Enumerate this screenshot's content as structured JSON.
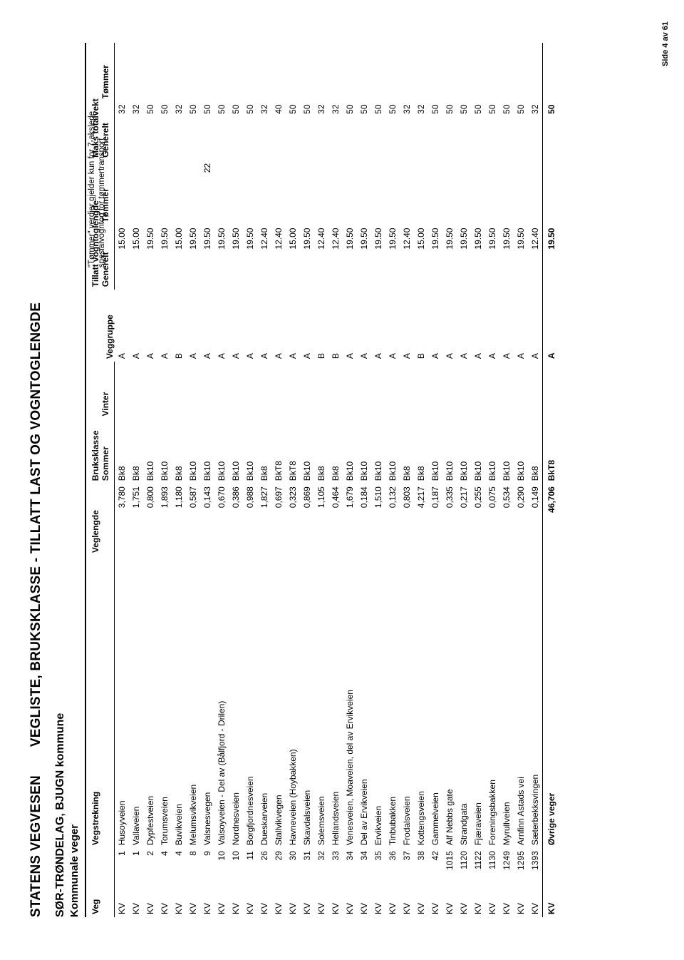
{
  "title_left": "STATENS VEGVESEN",
  "title_right": "VEGLISTE,  BRUKSKLASSE - TILLATT LAST OG VOGNTOGLENGDE",
  "subtitle": "SØR-TRØNDELAG, BJUGN kommune",
  "subtitle2": "Kommunale veger",
  "note_line1": "\"Tømmer\" verdier gjelder kun for 7-akslede",
  "note_line2": "spesialvogntog for tømmertransport",
  "footer": "Side 4 av 61",
  "headers": {
    "veg": "Veg",
    "vegstrekning": "Vegstrekning",
    "veglengde": "Veglengde",
    "bruksklasse": "Bruksklasse",
    "sommer": "Sommer",
    "vinter": "Vinter",
    "veggruppe": "Veggruppe",
    "tillatt": "Tillatt vogntoglengde",
    "maks": "Maks totalvekt",
    "generelt": "Generelt",
    "tommer": "Tømmer"
  },
  "rows": [
    {
      "t": "KV",
      "nr": "1",
      "name": "Husoyveien",
      "len": "3,780",
      "sommer": "Bk8",
      "vinter": "",
      "grp": "A",
      "vg": "15.00",
      "vt": "",
      "mg": "32",
      "mt": ""
    },
    {
      "t": "KV",
      "nr": "1",
      "name": "Vallaveien",
      "len": "1,751",
      "sommer": "Bk8",
      "vinter": "",
      "grp": "A",
      "vg": "15.00",
      "vt": "",
      "mg": "32",
      "mt": ""
    },
    {
      "t": "KV",
      "nr": "2",
      "name": "Dypfestveien",
      "len": "0,800",
      "sommer": "Bk10",
      "vinter": "",
      "grp": "A",
      "vg": "19.50",
      "vt": "",
      "mg": "50",
      "mt": ""
    },
    {
      "t": "KV",
      "nr": "4",
      "name": "Torumsveien",
      "len": "1,893",
      "sommer": "Bk10",
      "vinter": "",
      "grp": "A",
      "vg": "19.50",
      "vt": "",
      "mg": "50",
      "mt": ""
    },
    {
      "t": "KV",
      "nr": "4",
      "name": "Buvikveien",
      "len": "1,180",
      "sommer": "Bk8",
      "vinter": "",
      "grp": "B",
      "vg": "15.00",
      "vt": "",
      "mg": "32",
      "mt": ""
    },
    {
      "t": "KV",
      "nr": "8",
      "name": "Melumsvikveien",
      "len": "0,587",
      "sommer": "Bk10",
      "vinter": "",
      "grp": "A",
      "vg": "19.50",
      "vt": "",
      "mg": "50",
      "mt": ""
    },
    {
      "t": "KV",
      "nr": "9",
      "name": "Valsnesvegen",
      "len": "0,143",
      "sommer": "Bk10",
      "vinter": "",
      "grp": "A",
      "vg": "19.50",
      "vt": "22",
      "mg": "50",
      "mt": ""
    },
    {
      "t": "KV",
      "nr": "10",
      "name": "Valsoyveien - Del av (Bålfjord - Drilen)",
      "len": "0,670",
      "sommer": "Bk10",
      "vinter": "",
      "grp": "A",
      "vg": "19.50",
      "vt": "",
      "mg": "50",
      "mt": ""
    },
    {
      "t": "KV",
      "nr": "10",
      "name": "Nordnesveien",
      "len": "0,386",
      "sommer": "Bk10",
      "vinter": "",
      "grp": "A",
      "vg": "19.50",
      "vt": "",
      "mg": "50",
      "mt": ""
    },
    {
      "t": "KV",
      "nr": "11",
      "name": "Borgfjordnesveien",
      "len": "0,988",
      "sommer": "Bk10",
      "vinter": "",
      "grp": "A",
      "vg": "19.50",
      "vt": "",
      "mg": "50",
      "mt": ""
    },
    {
      "t": "KV",
      "nr": "26",
      "name": "Dueskarveien",
      "len": "1,827",
      "sommer": "Bk8",
      "vinter": "",
      "grp": "A",
      "vg": "12.40",
      "vt": "",
      "mg": "32",
      "mt": ""
    },
    {
      "t": "KV",
      "nr": "29",
      "name": "Stallvikvegen",
      "len": "0,697",
      "sommer": "BkT8",
      "vinter": "",
      "grp": "A",
      "vg": "12.40",
      "vt": "",
      "mg": "40",
      "mt": ""
    },
    {
      "t": "KV",
      "nr": "30",
      "name": "Havneveien (Hoybakken)",
      "len": "0,323",
      "sommer": "BkT8",
      "vinter": "",
      "grp": "A",
      "vg": "15.00",
      "vt": "",
      "mg": "50",
      "mt": ""
    },
    {
      "t": "KV",
      "nr": "31",
      "name": "Skavdalsveien",
      "len": "0,869",
      "sommer": "Bk10",
      "vinter": "",
      "grp": "A",
      "vg": "19.50",
      "vt": "",
      "mg": "50",
      "mt": ""
    },
    {
      "t": "KV",
      "nr": "32",
      "name": "Solemsveien",
      "len": "1,105",
      "sommer": "Bk8",
      "vinter": "",
      "grp": "B",
      "vg": "12.40",
      "vt": "",
      "mg": "32",
      "mt": ""
    },
    {
      "t": "KV",
      "nr": "33",
      "name": "Hellandsveien",
      "len": "0,464",
      "sommer": "Bk8",
      "vinter": "",
      "grp": "B",
      "vg": "12.40",
      "vt": "",
      "mg": "32",
      "mt": ""
    },
    {
      "t": "KV",
      "nr": "34",
      "name": "Venesveien, Moaveien, del av Ervikveien",
      "len": "1,679",
      "sommer": "Bk10",
      "vinter": "",
      "grp": "A",
      "vg": "19.50",
      "vt": "",
      "mg": "50",
      "mt": ""
    },
    {
      "t": "KV",
      "nr": "34",
      "name": "Del av Ervikveien",
      "len": "0,184",
      "sommer": "Bk10",
      "vinter": "",
      "grp": "A",
      "vg": "19.50",
      "vt": "",
      "mg": "50",
      "mt": ""
    },
    {
      "t": "KV",
      "nr": "35",
      "name": "Ervikveien",
      "len": "1,510",
      "sommer": "Bk10",
      "vinter": "",
      "grp": "A",
      "vg": "19.50",
      "vt": "",
      "mg": "50",
      "mt": ""
    },
    {
      "t": "KV",
      "nr": "36",
      "name": "Tinbubakken",
      "len": "0,132",
      "sommer": "Bk10",
      "vinter": "",
      "grp": "A",
      "vg": "19.50",
      "vt": "",
      "mg": "50",
      "mt": ""
    },
    {
      "t": "KV",
      "nr": "37",
      "name": "Frodalsveien",
      "len": "0,803",
      "sommer": "Bk8",
      "vinter": "",
      "grp": "A",
      "vg": "12.40",
      "vt": "",
      "mg": "32",
      "mt": ""
    },
    {
      "t": "KV",
      "nr": "38",
      "name": "Kottengsveien",
      "len": "4,217",
      "sommer": "Bk8",
      "vinter": "",
      "grp": "B",
      "vg": "15.00",
      "vt": "",
      "mg": "32",
      "mt": ""
    },
    {
      "t": "KV",
      "nr": "42",
      "name": "Gammelveien",
      "len": "0,187",
      "sommer": "Bk10",
      "vinter": "",
      "grp": "A",
      "vg": "19.50",
      "vt": "",
      "mg": "50",
      "mt": ""
    },
    {
      "t": "KV",
      "nr": "1015",
      "name": "Alf Nebbs gate",
      "len": "0,335",
      "sommer": "Bk10",
      "vinter": "",
      "grp": "A",
      "vg": "19.50",
      "vt": "",
      "mg": "50",
      "mt": ""
    },
    {
      "t": "KV",
      "nr": "1120",
      "name": "Strandgata",
      "len": "0,217",
      "sommer": "Bk10",
      "vinter": "",
      "grp": "A",
      "vg": "19.50",
      "vt": "",
      "mg": "50",
      "mt": ""
    },
    {
      "t": "KV",
      "nr": "1122",
      "name": "Fjæraveien",
      "len": "0,255",
      "sommer": "Bk10",
      "vinter": "",
      "grp": "A",
      "vg": "19.50",
      "vt": "",
      "mg": "50",
      "mt": ""
    },
    {
      "t": "KV",
      "nr": "1130",
      "name": "Foreningsbakken",
      "len": "0,075",
      "sommer": "Bk10",
      "vinter": "",
      "grp": "A",
      "vg": "19.50",
      "vt": "",
      "mg": "50",
      "mt": ""
    },
    {
      "t": "KV",
      "nr": "1249",
      "name": "Myrullveien",
      "len": "0,534",
      "sommer": "Bk10",
      "vinter": "",
      "grp": "A",
      "vg": "19.50",
      "vt": "",
      "mg": "50",
      "mt": ""
    },
    {
      "t": "KV",
      "nr": "1295",
      "name": "Arnfinn Astads vei",
      "len": "0,290",
      "sommer": "Bk10",
      "vinter": "",
      "grp": "A",
      "vg": "19.50",
      "vt": "",
      "mg": "50",
      "mt": ""
    },
    {
      "t": "KV",
      "nr": "1393",
      "name": "Sæterbekksvingen",
      "len": "0,149",
      "sommer": "Bk8",
      "vinter": "",
      "grp": "A",
      "vg": "12.40",
      "vt": "",
      "mg": "32",
      "mt": ""
    }
  ],
  "totals": {
    "t": "KV",
    "nr": "",
    "name": "Øvrige veger",
    "len": "46,706",
    "sommer": "BkT8",
    "vinter": "",
    "grp": "A",
    "vg": "19.50",
    "vt": "",
    "mg": "50",
    "mt": ""
  }
}
